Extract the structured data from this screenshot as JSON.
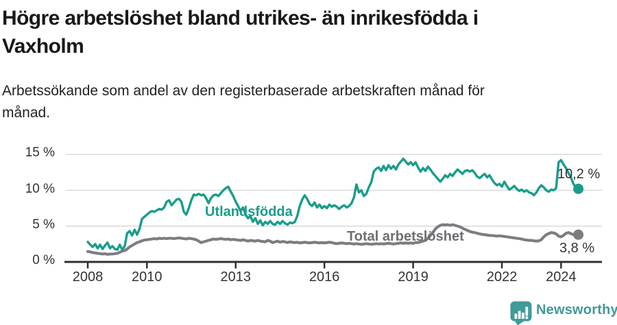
{
  "header": {
    "title": "Högre arbetslöshet bland utrikes- än inrikesfödda i Vaxholm",
    "subtitle": "Arbetssökande som andel av den registerbaserade arbetskraften månad för månad."
  },
  "palette": {
    "accent_teal": "#199d8b",
    "line_gray": "#7c7c81",
    "label_gray": "#6e6e73",
    "axis": "#2f2f2f",
    "grid": "#dadada",
    "text": "#333333",
    "logo_teal": "#3f9b98"
  },
  "footer": {
    "brand": "Newsworthy"
  },
  "chart_data": {
    "type": "line",
    "title": "Högre arbetslöshet bland utrikes- än inrikesfödda i Vaxholm",
    "subtitle": "Arbetssökande som andel av den registerbaserade arbetskraften månad för månad.",
    "x_unit": "month",
    "x_start_year": 2008,
    "x_tick_years": [
      2008,
      2010,
      2013,
      2016,
      2019,
      2022,
      2024
    ],
    "x_tick_labels": [
      "2008",
      "2010",
      "2013",
      "2016",
      "2019",
      "2022",
      "2024"
    ],
    "y_ticks": [
      0,
      5,
      10,
      15
    ],
    "y_tick_labels": [
      "0 %",
      "5 %",
      "10 %",
      "15 %"
    ],
    "ylim": [
      0,
      16.5
    ],
    "grid": true,
    "legend_position": "inline-annotations",
    "series": [
      {
        "name": "Utlandsfödda",
        "color": "#199d8b",
        "end_label": "10,2 %",
        "end_value": 10.2,
        "values": [
          2.8,
          2.4,
          2.1,
          2.5,
          1.9,
          2.4,
          1.8,
          2.3,
          2.7,
          1.9,
          2.2,
          1.8,
          1.7,
          2.4,
          1.7,
          2.2,
          4.0,
          4.3,
          3.7,
          4.5,
          3.8,
          4.6,
          6.0,
          6.3,
          6.6,
          6.9,
          7.1,
          7.0,
          7.2,
          7.4,
          7.3,
          7.6,
          8.4,
          8.6,
          7.9,
          8.3,
          8.7,
          8.8,
          8.4,
          7.0,
          6.6,
          7.5,
          8.6,
          9.4,
          9.3,
          9.5,
          9.3,
          9.4,
          8.9,
          8.2,
          8.9,
          9.3,
          9.4,
          9.2,
          9.6,
          10.0,
          10.3,
          10.5,
          9.8,
          9.2,
          8.4,
          7.8,
          7.1,
          7.6,
          6.6,
          6.1,
          6.4,
          5.6,
          6.1,
          5.3,
          5.8,
          5.1,
          5.6,
          5.3,
          5.7,
          5.3,
          5.2,
          5.6,
          5.3,
          5.7,
          5.4,
          5.2,
          5.5,
          5.4,
          5.6,
          6.4,
          7.8,
          8.7,
          9.3,
          8.8,
          8.1,
          7.8,
          8.3,
          7.6,
          8.0,
          7.5,
          7.8,
          7.5,
          8.0,
          7.7,
          7.9,
          7.7,
          7.4,
          7.7,
          7.9,
          7.6,
          7.8,
          8.2,
          9.0,
          10.8,
          9.7,
          10.0,
          9.2,
          9.5,
          10.4,
          11.1,
          12.6,
          13.0,
          13.2,
          12.7,
          13.4,
          12.8,
          13.5,
          13.0,
          13.4,
          12.9,
          13.6,
          14.0,
          14.4,
          14.0,
          13.6,
          13.9,
          13.5,
          13.9,
          13.2,
          12.6,
          13.1,
          12.7,
          13.3,
          12.9,
          12.4,
          12.0,
          11.6,
          11.2,
          11.6,
          12.1,
          11.8,
          12.3,
          12.0,
          12.5,
          12.9,
          12.6,
          12.3,
          12.7,
          12.8,
          12.6,
          12.8,
          12.4,
          11.9,
          11.7,
          12.0,
          12.3,
          11.8,
          12.1,
          11.5,
          11.0,
          10.7,
          10.9,
          10.5,
          11.2,
          10.6,
          10.1,
          10.3,
          10.6,
          10.2,
          9.9,
          10.1,
          9.8,
          10.0,
          9.7,
          9.6,
          9.3,
          9.7,
          10.3,
          10.7,
          10.4,
          10.0,
          9.8,
          10.1,
          10.0,
          10.3,
          13.9,
          14.2,
          13.6,
          13.1,
          12.4,
          11.8,
          10.9,
          10.4,
          10.2
        ]
      },
      {
        "name": "Total arbetslöshet",
        "color": "#7c7c81",
        "end_label": "3,8 %",
        "end_value": 3.8,
        "values": [
          1.45,
          1.4,
          1.3,
          1.25,
          1.2,
          1.15,
          1.1,
          1.15,
          1.05,
          1.1,
          1.1,
          1.15,
          1.2,
          1.35,
          1.5,
          1.6,
          1.8,
          2.1,
          2.3,
          2.5,
          2.7,
          2.8,
          2.95,
          3.05,
          3.1,
          3.15,
          3.2,
          3.25,
          3.2,
          3.3,
          3.25,
          3.3,
          3.25,
          3.3,
          3.3,
          3.25,
          3.3,
          3.35,
          3.3,
          3.25,
          3.2,
          3.3,
          3.25,
          3.2,
          3.1,
          2.9,
          2.7,
          2.8,
          2.9,
          3.0,
          3.1,
          3.2,
          3.15,
          3.2,
          3.25,
          3.2,
          3.15,
          3.2,
          3.1,
          3.15,
          3.1,
          3.05,
          3.0,
          3.1,
          3.0,
          2.9,
          3.0,
          2.95,
          2.9,
          3.0,
          2.9,
          2.85,
          2.8,
          3.0,
          2.9,
          2.7,
          2.8,
          2.9,
          2.75,
          2.85,
          2.8,
          2.7,
          2.8,
          2.75,
          2.7,
          2.75,
          2.65,
          2.7,
          2.75,
          2.7,
          2.65,
          2.7,
          2.75,
          2.7,
          2.65,
          2.7,
          2.65,
          2.7,
          2.75,
          2.7,
          2.6,
          2.55,
          2.6,
          2.65,
          2.6,
          2.55,
          2.6,
          2.55,
          2.5,
          2.55,
          2.5,
          2.45,
          2.5,
          2.55,
          2.5,
          2.45,
          2.5,
          2.55,
          2.5,
          2.55,
          2.5,
          2.55,
          2.6,
          2.55,
          2.5,
          2.55,
          2.6,
          2.65,
          2.6,
          2.65,
          2.6,
          2.65,
          2.6,
          2.7,
          2.7,
          2.8,
          2.9,
          3.0,
          3.3,
          3.7,
          4.1,
          4.6,
          4.9,
          5.1,
          5.2,
          5.15,
          5.2,
          5.1,
          5.2,
          5.1,
          5.0,
          4.9,
          4.7,
          4.55,
          4.4,
          4.25,
          4.15,
          4.1,
          4.0,
          3.9,
          3.85,
          3.8,
          3.75,
          3.7,
          3.68,
          3.65,
          3.6,
          3.65,
          3.6,
          3.55,
          3.5,
          3.45,
          3.4,
          3.35,
          3.3,
          3.25,
          3.2,
          3.1,
          3.05,
          3.0,
          3.0,
          2.95,
          2.9,
          2.95,
          3.1,
          3.5,
          3.8,
          3.95,
          4.1,
          4.05,
          3.9,
          3.6,
          3.5,
          3.7,
          4.0,
          4.1,
          3.95,
          3.8,
          3.75,
          3.8
        ]
      }
    ]
  }
}
